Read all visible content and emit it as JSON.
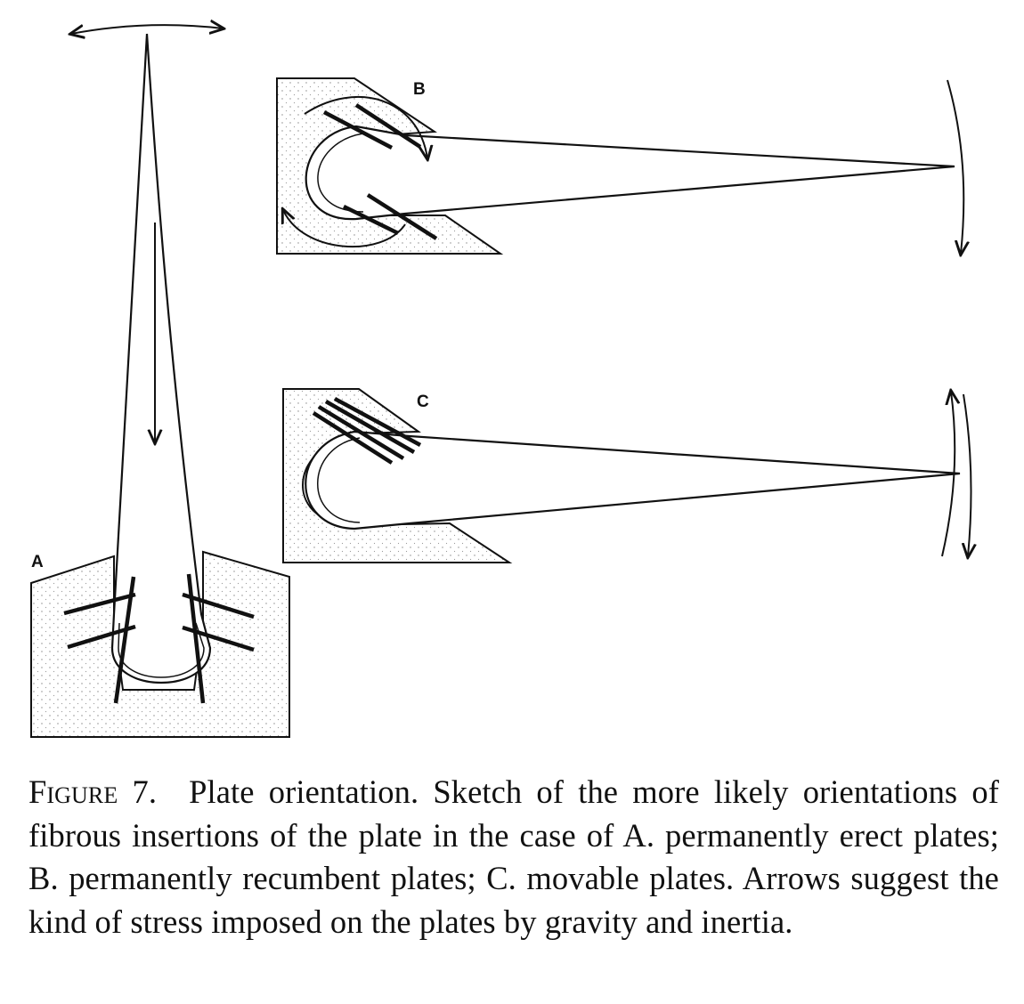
{
  "figure": {
    "panels": [
      {
        "label": "A"
      },
      {
        "label": "B"
      },
      {
        "label": "C"
      }
    ]
  },
  "caption": {
    "heading": "Figure 7.",
    "text": "Plate orientation. Sketch of the more likely orientations of fibrous insertions of the plate in the case of A. permanently erect plates; B. permanently recumbent plates; C. movable plates. Arrows suggest the kind of stress imposed on the plates by gravity and inertia."
  }
}
